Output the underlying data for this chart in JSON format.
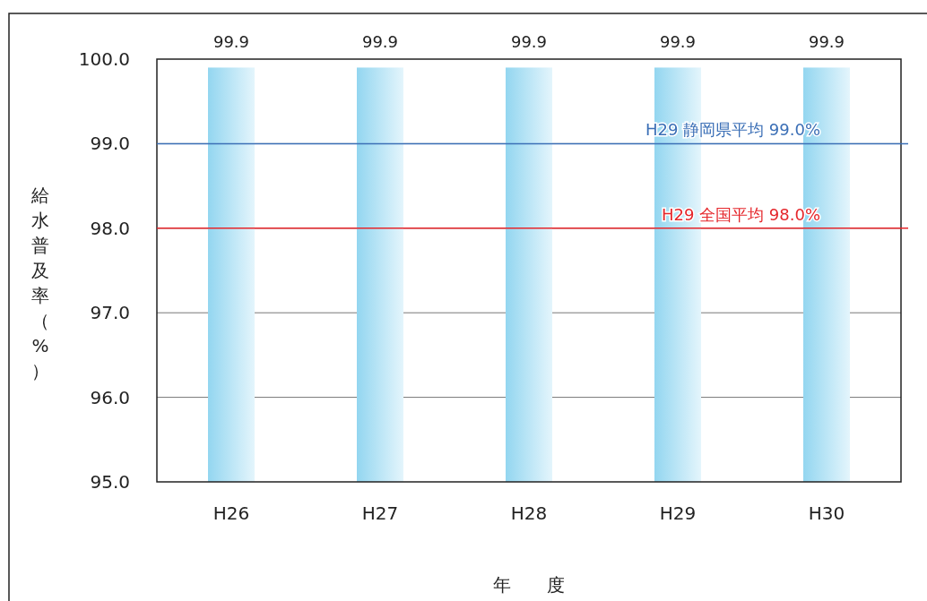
{
  "chart_data": {
    "type": "bar",
    "categories": [
      "H26",
      "H27",
      "H28",
      "H29",
      "H30"
    ],
    "values": [
      99.9,
      99.9,
      99.9,
      99.9,
      99.9
    ],
    "color": "#93d6f0",
    "data_labels": true,
    "ylim": [
      95,
      100
    ],
    "yticks": [
      {
        "value": 95,
        "label": "95.0"
      },
      {
        "value": 96,
        "label": "96.0"
      },
      {
        "value": 97,
        "label": "97.0"
      },
      {
        "value": 98,
        "label": "98.0"
      },
      {
        "value": 99,
        "label": "99.0"
      },
      {
        "value": 100,
        "label": "100.0"
      }
    ],
    "grid": "y",
    "ylabel": "給水普及率（%）",
    "xlabel": "年　　度",
    "ref_lines": [
      {
        "axis": "y",
        "value": 99.0,
        "label": "H29  静岡県平均 99.0%",
        "color": "#3b6fb6"
      },
      {
        "axis": "y",
        "value": 98.0,
        "label": "H29  全国平均 98.0%",
        "color": "#e5262b"
      }
    ]
  }
}
